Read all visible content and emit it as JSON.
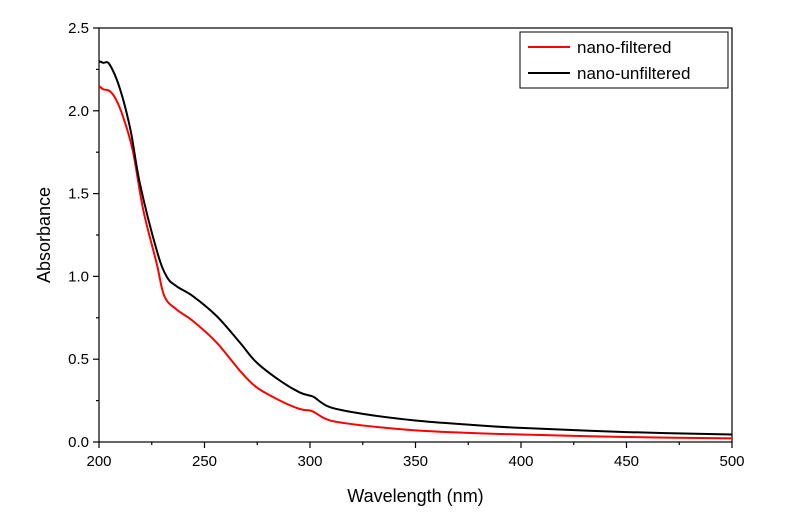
{
  "chart_data": {
    "type": "line",
    "title": "",
    "xlabel": "Wavelength (nm)",
    "ylabel": "Absorbance",
    "xlim": [
      200,
      500
    ],
    "ylim": [
      0,
      2.5
    ],
    "xticks": [
      200,
      250,
      300,
      350,
      400,
      450,
      500
    ],
    "xtick_labels": [
      "200",
      "250",
      "300",
      "350",
      "400",
      "450",
      "500"
    ],
    "yticks": [
      0,
      0.5,
      1.0,
      1.5,
      2.0,
      2.5
    ],
    "ytick_labels": [
      "0.0",
      "0.5",
      "1.0",
      "1.5",
      "2.0",
      "2.5"
    ],
    "grid": false,
    "legend_position": "top-right",
    "series": [
      {
        "name": "nano-filtered",
        "color": "#ff0000",
        "x": [
          200,
          202,
          205,
          208,
          211.5,
          216,
          221,
          227.3,
          231,
          236.8,
          244.6,
          255.8,
          266.8,
          274.7,
          285.8,
          295,
          300,
          302,
          309.5,
          325,
          350,
          375,
          400,
          450,
          500
        ],
        "y": [
          2.15,
          2.13,
          2.12,
          2.07,
          1.96,
          1.76,
          1.4,
          1.08,
          0.88,
          0.8,
          0.73,
          0.6,
          0.43,
          0.33,
          0.25,
          0.2,
          0.19,
          0.18,
          0.13,
          0.1,
          0.07,
          0.055,
          0.045,
          0.03,
          0.022
        ]
      },
      {
        "name": "nano-unfiltered",
        "color": "#000000",
        "x": [
          200,
          202,
          205,
          210,
          215,
          219.4,
          227.3,
          232,
          236.8,
          244.6,
          255.8,
          266.8,
          274.7,
          285.8,
          295,
          300,
          302,
          309.5,
          325,
          350,
          375,
          400,
          450,
          500
        ],
        "y": [
          2.3,
          2.29,
          2.28,
          2.13,
          1.88,
          1.56,
          1.16,
          1.0,
          0.94,
          0.88,
          0.76,
          0.6,
          0.48,
          0.37,
          0.3,
          0.28,
          0.27,
          0.21,
          0.17,
          0.13,
          0.105,
          0.085,
          0.06,
          0.045
        ]
      }
    ]
  }
}
